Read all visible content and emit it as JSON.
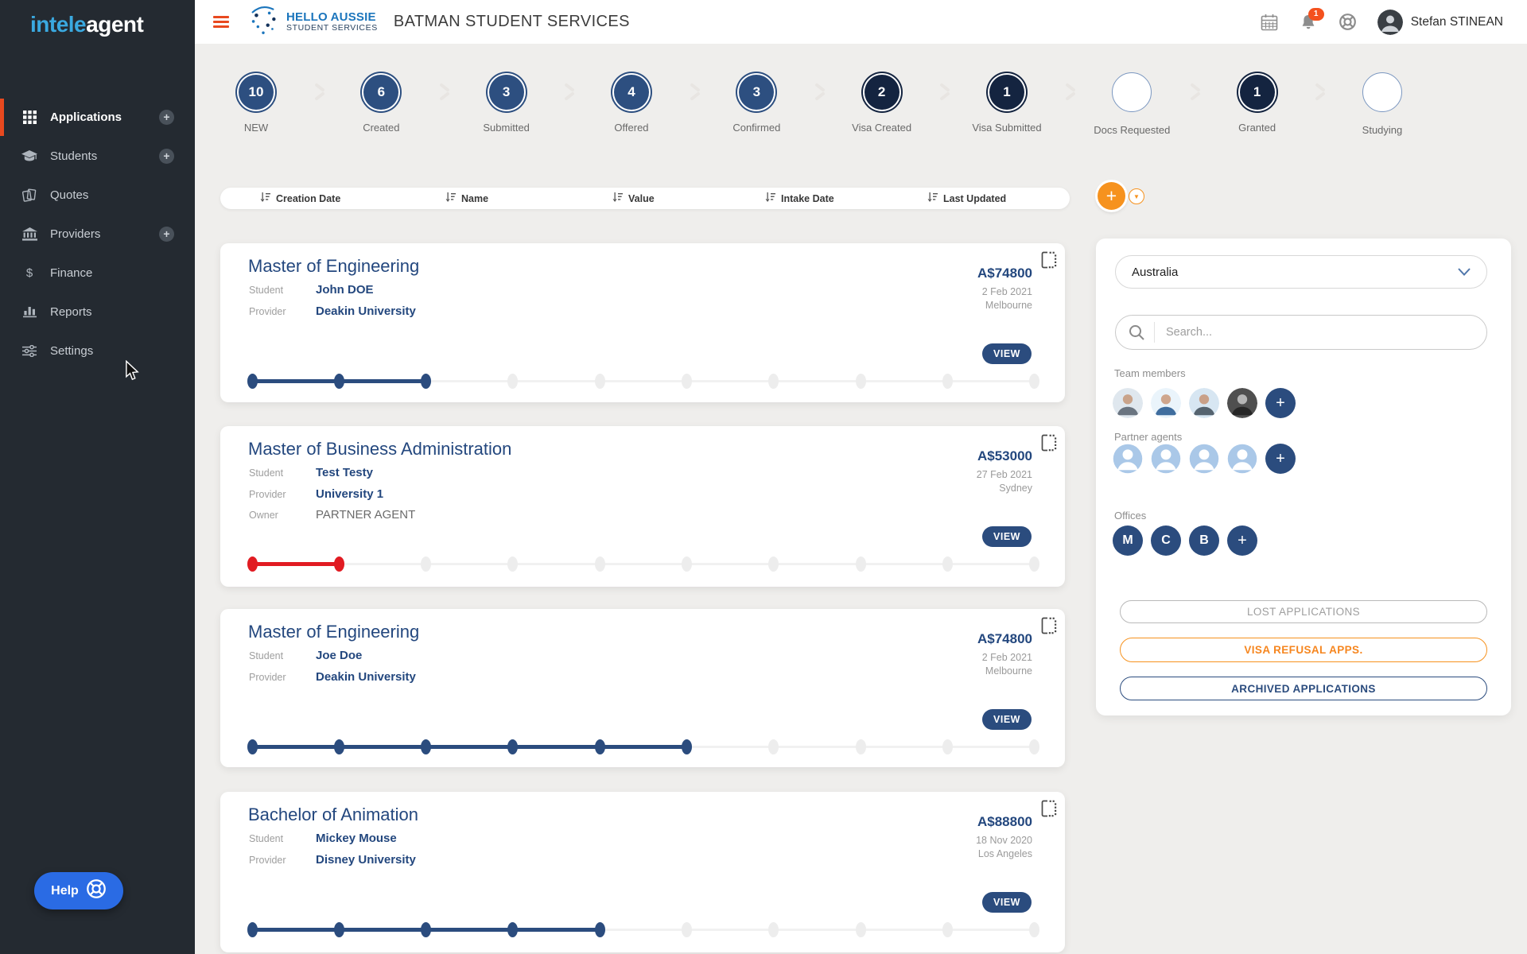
{
  "brand": {
    "logo_part1": "intele",
    "logo_part2": "agent"
  },
  "sidebar": {
    "items": [
      {
        "label": "Applications",
        "icon": "grid-icon",
        "active": true,
        "has_add": true
      },
      {
        "label": "Students",
        "icon": "graduation-cap-icon",
        "active": false,
        "has_add": true
      },
      {
        "label": "Quotes",
        "icon": "documents-icon",
        "active": false,
        "has_add": false
      },
      {
        "label": "Providers",
        "icon": "bank-icon",
        "active": false,
        "has_add": true
      },
      {
        "label": "Finance",
        "icon": "dollar-icon",
        "active": false,
        "has_add": false
      },
      {
        "label": "Reports",
        "icon": "bar-chart-icon",
        "active": false,
        "has_add": false
      },
      {
        "label": "Settings",
        "icon": "sliders-icon",
        "active": false,
        "has_add": false
      }
    ],
    "help_label": "Help"
  },
  "header": {
    "agency_name_line1": "HELLO AUSSIE",
    "agency_name_line2": "STUDENT SERVICES",
    "title": "BATMAN STUDENT SERVICES",
    "notification_badge": "1",
    "user_name": "Stefan STINEAN"
  },
  "pipeline": {
    "stages": [
      {
        "count": "10",
        "label": "NEW",
        "variant": "blue"
      },
      {
        "count": "6",
        "label": "Created",
        "variant": "blue"
      },
      {
        "count": "3",
        "label": "Submitted",
        "variant": "blue"
      },
      {
        "count": "4",
        "label": "Offered",
        "variant": "blue"
      },
      {
        "count": "3",
        "label": "Confirmed",
        "variant": "blue"
      },
      {
        "count": "2",
        "label": "Visa Created",
        "variant": "navy"
      },
      {
        "count": "1",
        "label": "Visa Submitted",
        "variant": "navy"
      },
      {
        "count": "",
        "label": "Docs Requested",
        "variant": "empty"
      },
      {
        "count": "1",
        "label": "Granted",
        "variant": "navy"
      },
      {
        "count": "",
        "label": "Studying",
        "variant": "empty"
      }
    ]
  },
  "sort_bar": {
    "fields": [
      "Creation Date",
      "Name",
      "Value",
      "Intake Date",
      "Last Updated"
    ]
  },
  "applications": [
    {
      "title": "Master of Engineering",
      "fields": [
        {
          "label": "Student",
          "value": "John DOE",
          "link": true
        },
        {
          "label": "Provider",
          "value": "Deakin University",
          "link": true
        }
      ],
      "amount": "A$74800",
      "date": "2 Feb 2021",
      "city": "Melbourne",
      "view_label": "VIEW",
      "progress": {
        "total": 10,
        "filled": 3,
        "color": "#2b4c7e"
      }
    },
    {
      "title": "Master of Business Administration",
      "fields": [
        {
          "label": "Student",
          "value": "Test Testy",
          "link": true
        },
        {
          "label": "Provider",
          "value": "University 1",
          "link": true
        },
        {
          "label": "Owner",
          "value": "PARTNER AGENT",
          "link": false
        }
      ],
      "amount": "A$53000",
      "date": "27 Feb 2021",
      "city": "Sydney",
      "view_label": "VIEW",
      "progress": {
        "total": 10,
        "filled": 2,
        "color": "#e11b22"
      }
    },
    {
      "title": "Master of Engineering",
      "fields": [
        {
          "label": "Student",
          "value": "Joe Doe",
          "link": true
        },
        {
          "label": "Provider",
          "value": "Deakin University",
          "link": true
        }
      ],
      "amount": "A$74800",
      "date": "2 Feb 2021",
      "city": "Melbourne",
      "view_label": "VIEW",
      "progress": {
        "total": 10,
        "filled": 6,
        "color": "#2b4c7e"
      }
    },
    {
      "title": "Bachelor of Animation",
      "fields": [
        {
          "label": "Student",
          "value": "Mickey Mouse",
          "link": true
        },
        {
          "label": "Provider",
          "value": "Disney University",
          "link": true
        }
      ],
      "amount": "A$88800",
      "date": "18 Nov 2020",
      "city": "Los Angeles",
      "view_label": "VIEW",
      "progress": {
        "total": 10,
        "filled": 5,
        "color": "#2b4c7e"
      }
    }
  ],
  "right_panel": {
    "country": "Australia",
    "search_placeholder": "Search...",
    "team_members_label": "Team members",
    "team_member_count": 4,
    "partner_agents_label": "Partner agents",
    "partner_agent_count": 4,
    "offices_label": "Offices",
    "offices": [
      "M",
      "C",
      "B"
    ],
    "action_buttons": [
      {
        "label": "LOST APPLICATIONS",
        "variant": "gray"
      },
      {
        "label": "VISA REFUSAL APPS.",
        "variant": "orange"
      },
      {
        "label": "ARCHIVED APPLICATIONS",
        "variant": "navy"
      }
    ]
  },
  "colors": {
    "accent_orange": "#e8491f",
    "fab_orange": "#f6921e",
    "brand_navy": "#2b4c7e",
    "dark_navy": "#142440",
    "progress_red": "#e11b22",
    "help_blue": "#2a6be4",
    "agency_blue": "#1b75bc"
  }
}
